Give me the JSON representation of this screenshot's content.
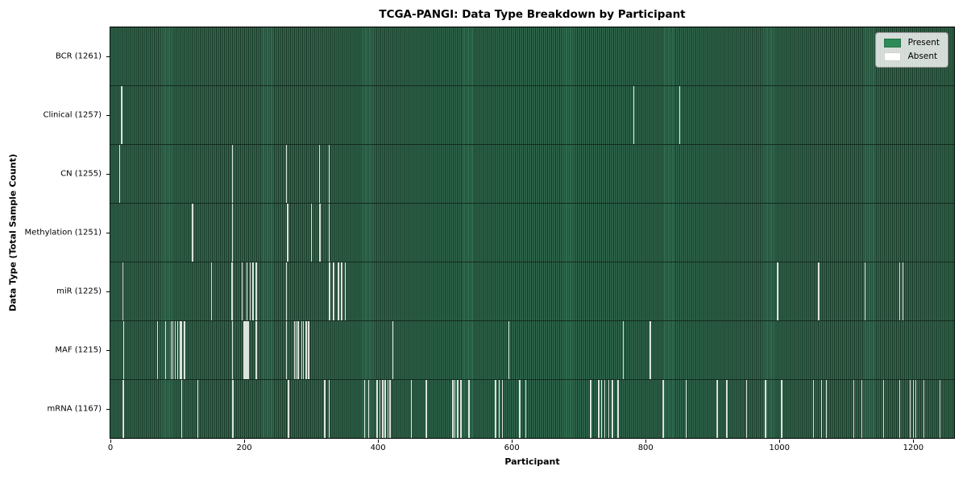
{
  "chart_data": {
    "type": "heatmap",
    "title": "TCGA-PANGI: Data Type Breakdown by Participant",
    "xlabel": "Participant",
    "ylabel": "Data Type (Total Sample Count)",
    "x_ticks": [
      0,
      200,
      400,
      600,
      800,
      1000,
      1200
    ],
    "x_range": [
      0,
      1261
    ],
    "n_participants": 1261,
    "grid": false,
    "legend": {
      "position": "upper-right",
      "items": [
        {
          "label": "Present",
          "color": "#2e8b57"
        },
        {
          "label": "Absent",
          "color": "#ffffff"
        }
      ]
    },
    "colors": {
      "present_fill": "#2f6b4e",
      "bar_edge": "#1b3626",
      "row_separator": "#142a1c",
      "absent_stripe": "#dde3dd",
      "legend_present": "#2e8b57",
      "legend_absent": "#ffffff"
    },
    "rows": [
      {
        "data_type": "BCR",
        "label": "BCR (1261)",
        "present_count": 1261,
        "absent_participants": []
      },
      {
        "data_type": "Clinical",
        "label": "Clinical (1257)",
        "present_count": 1257,
        "absent_participants": [
          16,
          17,
          782,
          850
        ]
      },
      {
        "data_type": "CN",
        "label": "CN (1255)",
        "present_count": 1255,
        "absent_participants": [
          13,
          182,
          263,
          312,
          326,
          327
        ]
      },
      {
        "data_type": "Methylation",
        "label": "Methylation (1251)",
        "present_count": 1251,
        "absent_participants": [
          122,
          123,
          182,
          264,
          265,
          300,
          312,
          313,
          326,
          327
        ]
      },
      {
        "data_type": "miR",
        "label": "miR (1225)",
        "present_count": 1225,
        "absent_participants": [
          18,
          150,
          151,
          181,
          182,
          196,
          197,
          203,
          204,
          208,
          209,
          212,
          213,
          217,
          218,
          262,
          263,
          326,
          327,
          328,
          333,
          334,
          340,
          341,
          345,
          346,
          350,
          351,
          996,
          997,
          1058,
          1059,
          1127,
          1128,
          1179,
          1184
        ]
      },
      {
        "data_type": "MAF",
        "label": "MAF (1215)",
        "present_count": 1215,
        "absent_participants": [
          19,
          70,
          82,
          90,
          91,
          93,
          96,
          97,
          100,
          103,
          104,
          105,
          106,
          110,
          111,
          182,
          199,
          200,
          201,
          202,
          203,
          204,
          205,
          206,
          217,
          218,
          262,
          274,
          275,
          277,
          280,
          281,
          285,
          286,
          288,
          292,
          293,
          295,
          296,
          297,
          421,
          422,
          595,
          766,
          806,
          807
        ]
      },
      {
        "data_type": "mRNA",
        "label": "mRNA (1167)",
        "present_count": 1167,
        "absent_participants": [
          18,
          19,
          106,
          130,
          182,
          183,
          265,
          266,
          319,
          320,
          326,
          327,
          379,
          380,
          385,
          386,
          398,
          399,
          402,
          403,
          406,
          407,
          410,
          411,
          414,
          415,
          417,
          418,
          449,
          450,
          471,
          472,
          511,
          512,
          514,
          515,
          518,
          519,
          523,
          524,
          535,
          536,
          575,
          576,
          580,
          581,
          585,
          586,
          611,
          612,
          620,
          621,
          717,
          718,
          729,
          730,
          733,
          734,
          738,
          739,
          744,
          745,
          749,
          750,
          758,
          759,
          825,
          826,
          860,
          906,
          907,
          920,
          921,
          950,
          951,
          978,
          979,
          1002,
          1003,
          1050,
          1051,
          1062,
          1063,
          1070,
          1110,
          1111,
          1122,
          1155,
          1179,
          1195,
          1199,
          1203,
          1215,
          1239
        ]
      }
    ]
  }
}
